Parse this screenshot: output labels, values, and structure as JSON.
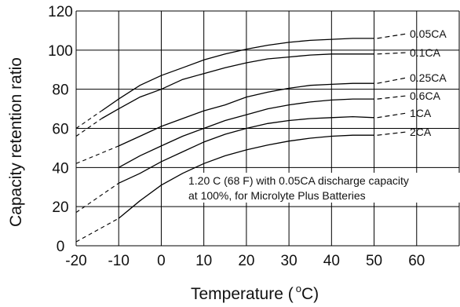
{
  "chart_data": {
    "type": "line",
    "xlabel": "Temperature ( °C)",
    "xlabel_main": "Temperature (",
    "xlabel_deg": "o",
    "xlabel_unit": "C)",
    "ylabel": "Capacity retention ratio",
    "xlim": [
      -20,
      70
    ],
    "ylim": [
      0,
      120
    ],
    "x_ticks": [
      -20,
      -10,
      0,
      10,
      20,
      30,
      40,
      50,
      60
    ],
    "y_ticks": [
      0,
      20,
      40,
      60,
      80,
      100,
      120
    ],
    "grid": true,
    "note_lines": [
      "1.20 C (68 F) with 0.05CA discharge capacity",
      "at 100%, for Microlyte Plus Batteries"
    ],
    "series": [
      {
        "name": "0.05CA",
        "x": [
          -14,
          -10,
          -5,
          0,
          5,
          10,
          15,
          20,
          25,
          30,
          35,
          40,
          45,
          50
        ],
        "y": [
          69,
          75,
          82,
          87,
          91,
          95,
          98,
          100.5,
          102.5,
          104,
          105,
          105.5,
          106,
          106
        ],
        "extrap_x": [
          -20,
          -14
        ],
        "extrap_y": [
          60,
          69
        ]
      },
      {
        "name": "0.1CA",
        "x": [
          -14,
          -10,
          -5,
          0,
          5,
          10,
          15,
          20,
          25,
          30,
          35,
          40,
          45,
          50
        ],
        "y": [
          65,
          70,
          76,
          80,
          85,
          88,
          91,
          93.5,
          95.5,
          96.5,
          97.5,
          98,
          98,
          98
        ],
        "extrap_x": [
          -20,
          -14
        ],
        "extrap_y": [
          56,
          65
        ]
      },
      {
        "name": "0.25CA",
        "x": [
          -10,
          -5,
          0,
          5,
          10,
          15,
          20,
          25,
          30,
          35,
          40,
          45,
          50
        ],
        "y": [
          51,
          56,
          61,
          65,
          69,
          72,
          76,
          78.5,
          80.5,
          82,
          82.5,
          83,
          83
        ],
        "extrap_x": [
          -20,
          -10
        ],
        "extrap_y": [
          42,
          51
        ]
      },
      {
        "name": "0.6CA",
        "x": [
          -10,
          -5,
          0,
          5,
          10,
          15,
          20,
          25,
          30,
          35,
          40,
          45,
          50
        ],
        "y": [
          40,
          46,
          51,
          56,
          60,
          64,
          67,
          70,
          72,
          73.5,
          74.5,
          75,
          75
        ]
      },
      {
        "name": "1CA",
        "x": [
          -10,
          -5,
          0,
          5,
          10,
          15,
          20,
          25,
          30,
          35,
          40,
          45,
          50
        ],
        "y": [
          32,
          37,
          43,
          48,
          53,
          57,
          60,
          62.5,
          64,
          65,
          65.5,
          66,
          65.5
        ],
        "extrap_x": [
          -20,
          -10
        ],
        "extrap_y": [
          17,
          32
        ]
      },
      {
        "name": "2CA",
        "x": [
          -10,
          -5,
          0,
          5,
          10,
          15,
          20,
          25,
          30,
          35,
          40,
          45,
          50
        ],
        "y": [
          14,
          23,
          31,
          37,
          42,
          46,
          49,
          51.5,
          53.5,
          55,
          56,
          56.5,
          56.5
        ],
        "extrap_x": [
          -20,
          -10
        ],
        "extrap_y": [
          2,
          14
        ]
      }
    ]
  }
}
